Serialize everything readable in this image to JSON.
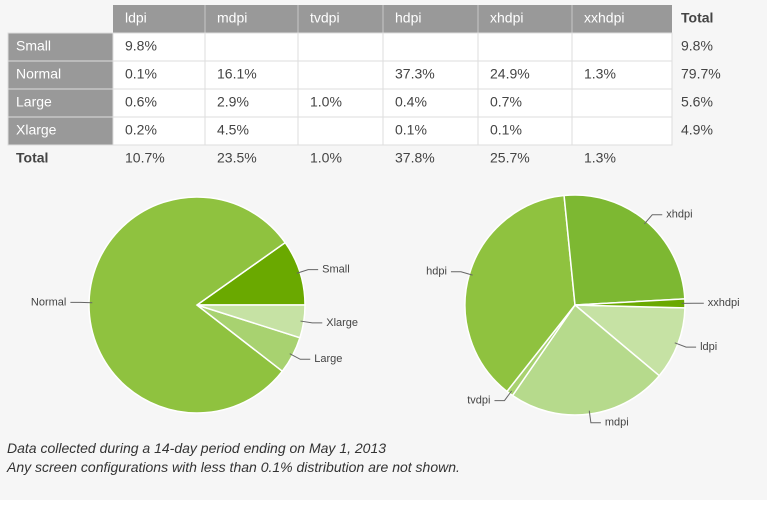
{
  "table": {
    "header": [
      "ldpi",
      "mdpi",
      "tvdpi",
      "hdpi",
      "xhdpi",
      "xxhdpi",
      "Total"
    ],
    "rows": [
      [
        "Small",
        "9.8%",
        null,
        null,
        null,
        null,
        null,
        "9.8%"
      ],
      [
        "Normal",
        "0.1%",
        "16.1%",
        null,
        "37.3%",
        "24.9%",
        "1.3%",
        "79.7%"
      ],
      [
        "Large",
        "0.6%",
        "2.9%",
        "1.0%",
        "0.4%",
        "0.7%",
        null,
        "5.6%"
      ],
      [
        "Xlarge",
        "0.2%",
        "4.5%",
        null,
        "0.1%",
        "0.1%",
        null,
        "4.9%"
      ],
      [
        "Total",
        "10.7%",
        "23.5%",
        "1.0%",
        "37.8%",
        "25.7%",
        "1.3%",
        null
      ]
    ]
  },
  "chart_data": [
    {
      "type": "pie",
      "categories": [
        "Small",
        "Normal",
        "Large",
        "Xlarge"
      ],
      "values": [
        9.8,
        79.7,
        5.6,
        4.9
      ],
      "colors": [
        "#6aa900",
        "#8fc23f",
        "#a8d270",
        "#c6e2a4"
      ]
    },
    {
      "type": "pie",
      "categories": [
        "ldpi",
        "mdpi",
        "tvdpi",
        "hdpi",
        "xhdpi",
        "xxhdpi"
      ],
      "values": [
        10.7,
        23.5,
        1.0,
        37.8,
        25.7,
        1.3
      ],
      "colors": [
        "#c6e2a4",
        "#b6da8c",
        "#a8d270",
        "#8fc23f",
        "#7db832",
        "#6aa900"
      ]
    }
  ],
  "notes": [
    "Data collected during a 14-day period ending on May 1, 2013",
    "Any screen configurations with less than 0.1% distribution are not shown."
  ]
}
